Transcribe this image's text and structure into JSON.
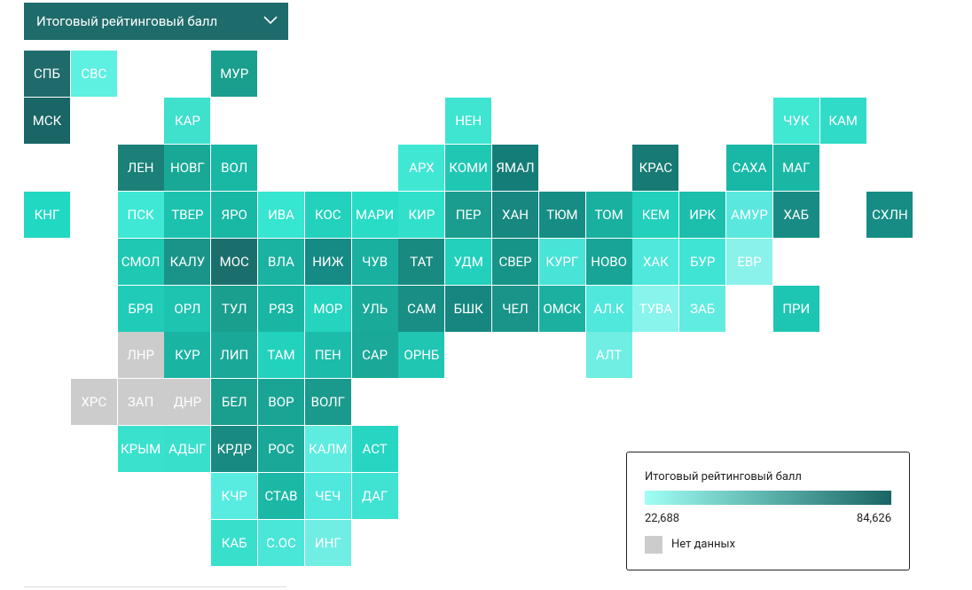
{
  "header": {
    "dropdown": "Итоговый рейтинговый балл"
  },
  "tiles": [
    {
      "label": "СПБ",
      "color": "#1f6b6b"
    },
    {
      "label": "СВС",
      "color": "#5ef0e0"
    },
    {
      "label": "МУР",
      "color": "#1a9e8e"
    },
    {
      "label": "МСК",
      "color": "#1a6565"
    },
    {
      "label": "КАР",
      "color": "#3fe0cc"
    },
    {
      "label": "НЕН",
      "color": "#3fe5d0"
    },
    {
      "label": "ЧУК",
      "color": "#40e8d2"
    },
    {
      "label": "КАМ",
      "color": "#30dcc8"
    },
    {
      "label": "ЛЕН",
      "color": "#1a8078"
    },
    {
      "label": "НОВГ",
      "color": "#19a896"
    },
    {
      "label": "ВОЛ",
      "color": "#18b8a5"
    },
    {
      "label": "АРХ",
      "color": "#40e8d4"
    },
    {
      "label": "КОМИ",
      "color": "#20c8b4"
    },
    {
      "label": "ЯМАЛ",
      "color": "#157d78"
    },
    {
      "label": "КРАС",
      "color": "#177a74"
    },
    {
      "label": "САХА",
      "color": "#19b8a6"
    },
    {
      "label": "МАГ",
      "color": "#1ab8a4"
    },
    {
      "label": "КНГ",
      "color": "#21d8c2"
    },
    {
      "label": "ПСК",
      "color": "#3ee8d4"
    },
    {
      "label": "ТВЕР",
      "color": "#1cc2ae"
    },
    {
      "label": "ЯРО",
      "color": "#19b8a5"
    },
    {
      "label": "ИВА",
      "color": "#36e6d0"
    },
    {
      "label": "КОС",
      "color": "#22d2bc"
    },
    {
      "label": "МАРИ",
      "color": "#28dcc6"
    },
    {
      "label": "КИР",
      "color": "#30e0ca"
    },
    {
      "label": "ПЕР",
      "color": "#1a9c8e"
    },
    {
      "label": "ХАН",
      "color": "#178780"
    },
    {
      "label": "ТЮМ",
      "color": "#158d84"
    },
    {
      "label": "ТОМ",
      "color": "#1ab0a0"
    },
    {
      "label": "КЕМ",
      "color": "#22d0bc"
    },
    {
      "label": "ИРК",
      "color": "#1cbeac"
    },
    {
      "label": "АМУР",
      "color": "#5ae8de"
    },
    {
      "label": "ХАБ",
      "color": "#188c84"
    },
    {
      "label": "СХЛН",
      "color": "#168c84"
    },
    {
      "label": "СМОЛ",
      "color": "#1ec8b2"
    },
    {
      "label": "КАЛУ",
      "color": "#1a9488"
    },
    {
      "label": "МОС",
      "color": "#1a6e6c"
    },
    {
      "label": "ВЛА",
      "color": "#1ab2a0"
    },
    {
      "label": "НИЖ",
      "color": "#168a84"
    },
    {
      "label": "ЧУВ",
      "color": "#1ab0a0"
    },
    {
      "label": "ТАТ",
      "color": "#198a80"
    },
    {
      "label": "УДМ",
      "color": "#22d0bc"
    },
    {
      "label": "СВЕР",
      "color": "#179488"
    },
    {
      "label": "КУРГ",
      "color": "#48e4d8"
    },
    {
      "label": "НОВО",
      "color": "#18a496"
    },
    {
      "label": "ХАК",
      "color": "#50e8dc"
    },
    {
      "label": "БУР",
      "color": "#40e4d4"
    },
    {
      "label": "ЕВР",
      "color": "#8af2ea"
    },
    {
      "label": "БРЯ",
      "color": "#20ccb8"
    },
    {
      "label": "ОРЛ",
      "color": "#1ec4b0"
    },
    {
      "label": "ТУЛ",
      "color": "#1a9e8e"
    },
    {
      "label": "РЯЗ",
      "color": "#1ab6a4"
    },
    {
      "label": "МОР",
      "color": "#24d4be"
    },
    {
      "label": "УЛЬ",
      "color": "#1aaa9a"
    },
    {
      "label": "САМ",
      "color": "#198e84"
    },
    {
      "label": "БШК",
      "color": "#178680"
    },
    {
      "label": "ЧЕЛ",
      "color": "#1a9488"
    },
    {
      "label": "ОМСК",
      "color": "#1cb0a0"
    },
    {
      "label": "АЛ.К",
      "color": "#50e8dc"
    },
    {
      "label": "ТУВА",
      "color": "#88f4ec"
    },
    {
      "label": "ЗАБ",
      "color": "#60ece0"
    },
    {
      "label": "ПРИ",
      "color": "#1dc6b2"
    },
    {
      "label": "ЛНР",
      "color": "#cccccc"
    },
    {
      "label": "КУР",
      "color": "#1ab4a2"
    },
    {
      "label": "ЛИП",
      "color": "#1aa898"
    },
    {
      "label": "ТАМ",
      "color": "#22d2bc"
    },
    {
      "label": "ПЕН",
      "color": "#1cbcaa"
    },
    {
      "label": "САР",
      "color": "#1aa898"
    },
    {
      "label": "ОРНБ",
      "color": "#20c6b2"
    },
    {
      "label": "АЛТ",
      "color": "#70eee4"
    },
    {
      "label": "ХРС",
      "color": "#cccccc"
    },
    {
      "label": "ЗАП",
      "color": "#cccccc"
    },
    {
      "label": "ДНР",
      "color": "#cccccc"
    },
    {
      "label": "БЕЛ",
      "color": "#1a9e8e"
    },
    {
      "label": "ВОР",
      "color": "#1aa494"
    },
    {
      "label": "ВОЛГ",
      "color": "#1a9a8c"
    },
    {
      "label": "КРЫМ",
      "color": "#3ae2ce"
    },
    {
      "label": "АДЫГ",
      "color": "#38e0cc"
    },
    {
      "label": "КРДР",
      "color": "#198a82"
    },
    {
      "label": "РОС",
      "color": "#1aa898"
    },
    {
      "label": "КАЛМ",
      "color": "#5eece0"
    },
    {
      "label": "АСТ",
      "color": "#26d6c2"
    },
    {
      "label": "КЧР",
      "color": "#58ece0"
    },
    {
      "label": "СТАВ",
      "color": "#1bb8a6"
    },
    {
      "label": "ЧЕЧ",
      "color": "#50e8dc"
    },
    {
      "label": "ДАГ",
      "color": "#40e2d2"
    },
    {
      "label": "КАБ",
      "color": "#38e0cc"
    },
    {
      "label": "С.ОС",
      "color": "#4ae6d8"
    },
    {
      "label": "ИНГ",
      "color": "#70eee4"
    }
  ],
  "legend": {
    "title": "Итоговый рейтинговый балл",
    "min": "22,688",
    "max": "84,626",
    "no_data": "Нет данных",
    "color_low": "#a0fff4",
    "color_high": "#1a6565",
    "no_data_color": "#cccccc"
  }
}
